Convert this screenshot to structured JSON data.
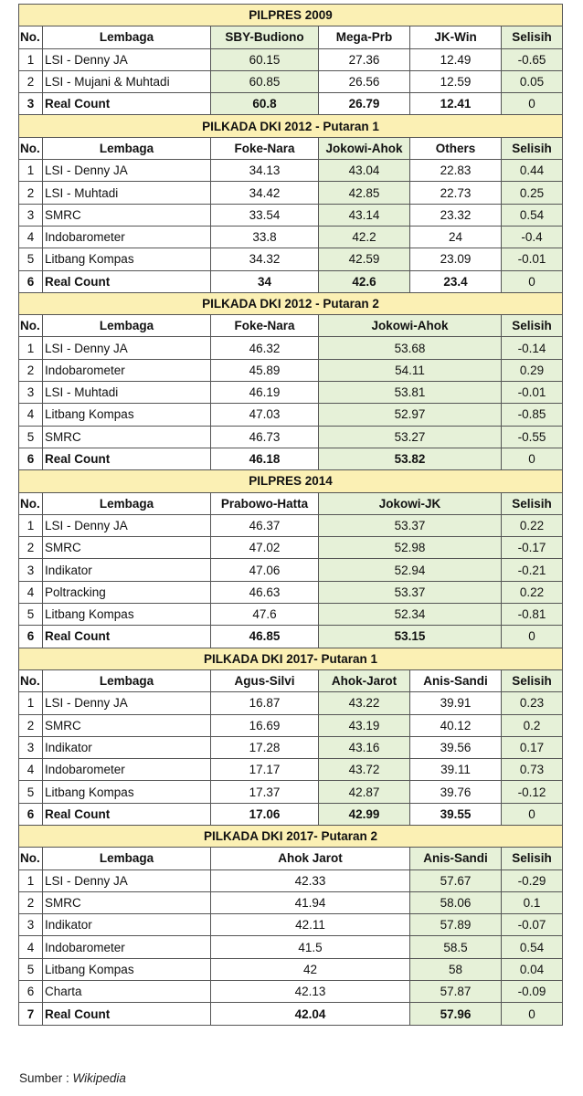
{
  "colors": {
    "title_bg": "#fbf0b4",
    "highlight_bg": "#e6f1d8",
    "border": "#555555"
  },
  "sections": [
    {
      "title": "PILPRES 2009",
      "layout": "three",
      "headers": [
        "No.",
        "Lembaga",
        "SBY-Budiono",
        "Mega-Prb",
        "JK-Win",
        "Selisih"
      ],
      "green": [
        2,
        5
      ],
      "rows": [
        [
          "1",
          "LSI - Denny JA",
          "60.15",
          "27.36",
          "12.49",
          "-0.65"
        ],
        [
          "2",
          "LSI - Mujani & Muhtadi",
          "60.85",
          "26.56",
          "12.59",
          "0.05"
        ],
        [
          "3",
          "Real Count",
          "60.8",
          "26.79",
          "12.41",
          "0"
        ]
      ]
    },
    {
      "title": "PILKADA DKI 2012 - Putaran 1",
      "layout": "three",
      "headers": [
        "No.",
        "Lembaga",
        "Foke-Nara",
        "Jokowi-Ahok",
        "Others",
        "Selisih"
      ],
      "green": [
        3,
        5
      ],
      "rows": [
        [
          "1",
          "LSI - Denny JA",
          "34.13",
          "43.04",
          "22.83",
          "0.44"
        ],
        [
          "2",
          "LSI -  Muhtadi",
          "34.42",
          "42.85",
          "22.73",
          "0.25"
        ],
        [
          "3",
          "SMRC",
          "33.54",
          "43.14",
          "23.32",
          "0.54"
        ],
        [
          "4",
          "Indobarometer",
          "33.8",
          "42.2",
          "24",
          "-0.4"
        ],
        [
          "5",
          "Litbang Kompas",
          "34.32",
          "42.59",
          "23.09",
          "-0.01"
        ],
        [
          "6",
          "Real Count",
          "34",
          "42.6",
          "23.4",
          "0"
        ]
      ]
    },
    {
      "title": "PILKADA DKI 2012 - Putaran 2",
      "layout": "two-b",
      "headers": [
        "No.",
        "Lembaga",
        "Foke-Nara",
        "Jokowi-Ahok",
        "Selisih"
      ],
      "green": [
        3,
        4
      ],
      "rows": [
        [
          "1",
          "LSI - Denny JA",
          "46.32",
          "53.68",
          "-0.14"
        ],
        [
          "2",
          "Indobarometer",
          "45.89",
          "54.11",
          "0.29"
        ],
        [
          "3",
          "LSI -  Muhtadi",
          "46.19",
          "53.81",
          "-0.01"
        ],
        [
          "4",
          "Litbang Kompas",
          "47.03",
          "52.97",
          "-0.85"
        ],
        [
          "5",
          "SMRC",
          "46.73",
          "53.27",
          "-0.55"
        ],
        [
          "6",
          "Real Count",
          "46.18",
          "53.82",
          "0"
        ]
      ]
    },
    {
      "title": "PILPRES 2014",
      "layout": "two-b",
      "headers": [
        "No.",
        "Lembaga",
        "Prabowo-Hatta",
        "Jokowi-JK",
        "Selisih"
      ],
      "green": [
        3,
        4
      ],
      "rows": [
        [
          "1",
          "LSI - Denny JA",
          "46.37",
          "53.37",
          "0.22"
        ],
        [
          "2",
          "SMRC",
          "47.02",
          "52.98",
          "-0.17"
        ],
        [
          "3",
          "Indikator",
          "47.06",
          "52.94",
          "-0.21"
        ],
        [
          "4",
          "Poltracking",
          "46.63",
          "53.37",
          "0.22"
        ],
        [
          "5",
          "Litbang Kompas",
          "47.6",
          "52.34",
          "-0.81"
        ],
        [
          "6",
          "Real Count",
          "46.85",
          "53.15",
          "0"
        ]
      ]
    },
    {
      "title": "PILKADA DKI 2017- Putaran 1",
      "layout": "three",
      "headers": [
        "No.",
        "Lembaga",
        "Agus-Silvi",
        "Ahok-Jarot",
        "Anis-Sandi",
        "Selisih"
      ],
      "green": [
        3,
        5
      ],
      "rows": [
        [
          "1",
          "LSI - Denny JA",
          "16.87",
          "43.22",
          "39.91",
          "0.23"
        ],
        [
          "2",
          "SMRC",
          "16.69",
          "43.19",
          "40.12",
          "0.2"
        ],
        [
          "3",
          "Indikator",
          "17.28",
          "43.16",
          "39.56",
          "0.17"
        ],
        [
          "4",
          "Indobarometer",
          "17.17",
          "43.72",
          "39.11",
          "0.73"
        ],
        [
          "5",
          "Litbang Kompas",
          "17.37",
          "42.87",
          "39.76",
          "-0.12"
        ],
        [
          "6",
          "Real Count",
          "17.06",
          "42.99",
          "39.55",
          "0"
        ]
      ]
    },
    {
      "title": "PILKADA DKI 2017- Putaran 2",
      "layout": "two-a",
      "headers": [
        "No.",
        "Lembaga",
        "Ahok Jarot",
        "Anis-Sandi",
        "Selisih"
      ],
      "green": [
        3,
        4
      ],
      "rows": [
        [
          "1",
          "LSI - Denny JA",
          "42.33",
          "57.67",
          "-0.29"
        ],
        [
          "2",
          "SMRC",
          "41.94",
          "58.06",
          "0.1"
        ],
        [
          "3",
          "Indikator",
          "42.11",
          "57.89",
          "-0.07"
        ],
        [
          "4",
          "Indobarometer",
          "41.5",
          "58.5",
          "0.54"
        ],
        [
          "5",
          "Litbang Kompas",
          "42",
          "58",
          "0.04"
        ],
        [
          "6",
          "Charta",
          "42.13",
          "57.87",
          "-0.09"
        ],
        [
          "7",
          "Real Count",
          "42.04",
          "57.96",
          "0"
        ]
      ]
    }
  ],
  "source": {
    "label": "Sumber : ",
    "name": "Wikipedia"
  }
}
